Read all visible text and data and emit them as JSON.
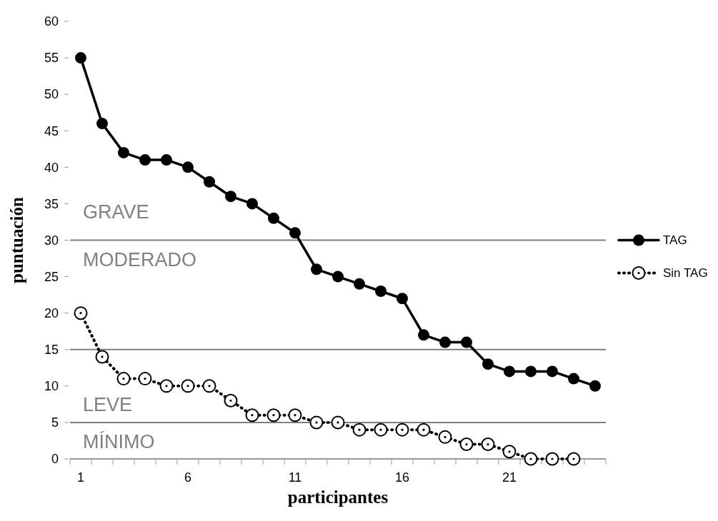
{
  "chart_data": {
    "type": "line",
    "xlabel": "participantes",
    "ylabel": "puntuación",
    "categories": [
      "1",
      null,
      null,
      null,
      null,
      "6",
      null,
      null,
      null,
      null,
      "11",
      null,
      null,
      null,
      null,
      "16",
      null,
      null,
      null,
      null,
      "21",
      null,
      null,
      null,
      null
    ],
    "series": [
      {
        "name": "TAG",
        "color": "#000000",
        "marker": "circle",
        "line_style": "solid",
        "values": [
          55,
          46,
          42,
          41,
          41,
          40,
          38,
          36,
          35,
          33,
          31,
          26,
          25,
          24,
          23,
          22,
          17,
          16,
          16,
          13,
          12,
          12,
          12,
          11,
          10
        ]
      },
      {
        "name": "Sin TAG",
        "color": "#000000",
        "marker": "circle-open",
        "line_style": "dotted",
        "values": [
          20,
          14,
          11,
          11,
          10,
          10,
          10,
          8,
          6,
          6,
          6,
          5,
          5,
          4,
          4,
          4,
          4,
          3,
          2,
          2,
          1,
          0,
          0,
          0,
          null
        ]
      }
    ],
    "ylim": [
      0,
      60
    ],
    "yticks": [
      0,
      5,
      10,
      15,
      20,
      25,
      30,
      35,
      40,
      45,
      50,
      55,
      60
    ],
    "grid": false,
    "legend": "right",
    "ref_lines": [
      {
        "axis": "y",
        "value": 30,
        "color": "#808080"
      },
      {
        "axis": "y",
        "value": 15,
        "color": "#808080"
      },
      {
        "axis": "y",
        "value": 5,
        "color": "#808080"
      }
    ],
    "annotations": [
      "GRAVE",
      "MODERADO",
      "LEVE",
      "MÍNIMO"
    ]
  }
}
